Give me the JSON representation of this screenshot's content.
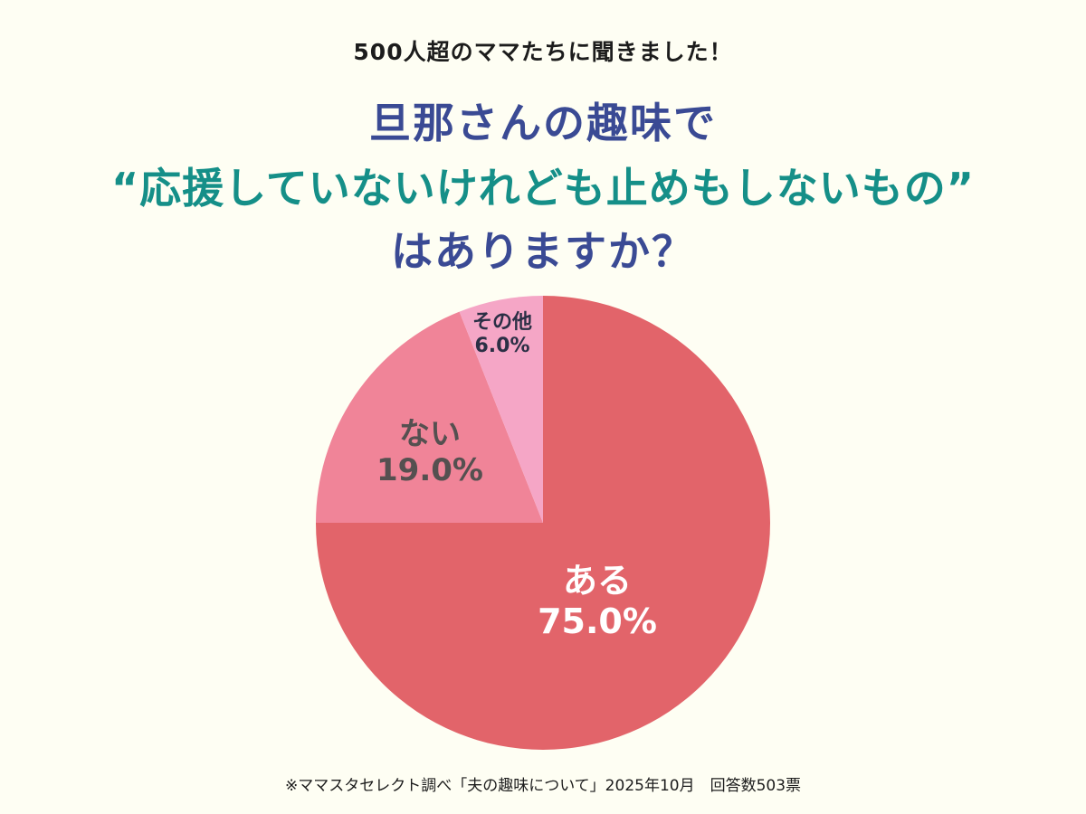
{
  "header": {
    "subtitle": "500人超のママたちに聞きました！",
    "title_line1": "旦那さんの趣味で",
    "title_line2": "“応援していないけれども止めもしないもの”",
    "title_line3": "はありますか？"
  },
  "colors": {
    "background": "#fefef3",
    "title_navy": "#3a4a94",
    "title_teal": "#158f88",
    "slice_aru": "#e2646a",
    "slice_nai": "#f08498",
    "slice_other": "#f5a6c6"
  },
  "chart_data": {
    "type": "pie",
    "title": "旦那さんの趣味で“応援していないけれども止めもしないもの”はありますか？",
    "subtitle": "500人超のママたちに聞きました！",
    "categories": [
      "ある",
      "ない",
      "その他"
    ],
    "values": [
      75.0,
      19.0,
      6.0
    ],
    "unit": "%",
    "start_angle": "12 o'clock",
    "direction": "clockwise",
    "legend": "none (labels inside slices)",
    "colors": [
      "#e2646a",
      "#f08498",
      "#f5a6c6"
    ],
    "total_responses": 503
  },
  "labels": {
    "aru": {
      "name": "ある",
      "value": "75.0%"
    },
    "nai": {
      "name": "ない",
      "value": "19.0%"
    },
    "other": {
      "name": "その他",
      "value": "6.0%"
    }
  },
  "footer": {
    "note": "※ママスタセレクト調べ「夫の趣味について」2025年10月　回答数503票"
  }
}
